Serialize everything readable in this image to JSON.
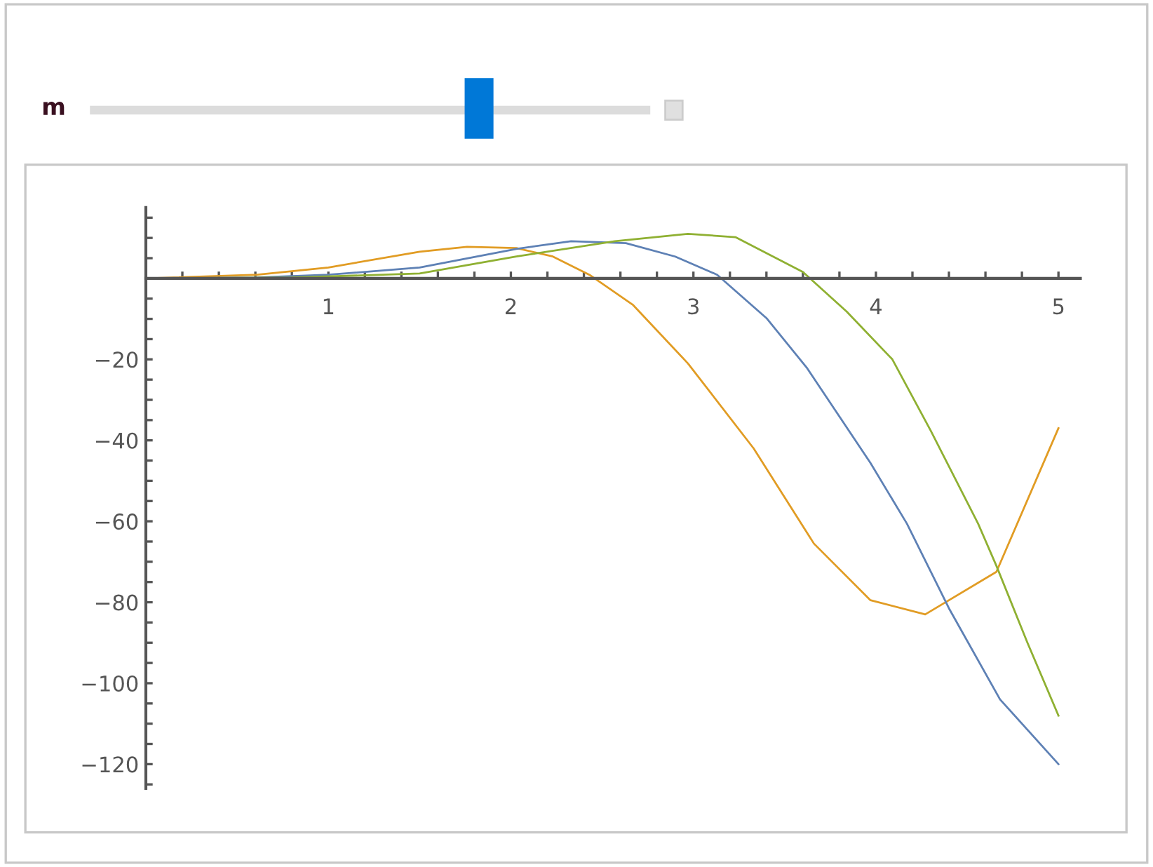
{
  "chart_data": {
    "type": "line",
    "annotations": [
      "m"
    ],
    "xlim": [
      0,
      5.12
    ],
    "ylim": [
      -126,
      17.5
    ],
    "xticks": [
      1,
      2,
      3,
      4,
      5,
      {
        "value": 0.2,
        "label": null
      },
      {
        "value": 0.4,
        "label": null
      },
      {
        "value": 0.6,
        "label": null
      },
      {
        "value": 0.8,
        "label": null
      },
      {
        "value": 1.2,
        "label": null
      },
      {
        "value": 1.4,
        "label": null
      },
      {
        "value": 1.6,
        "label": null
      },
      {
        "value": 1.8,
        "label": null
      },
      {
        "value": 2.2,
        "label": null
      },
      {
        "value": 2.4,
        "label": null
      },
      {
        "value": 2.6,
        "label": null
      },
      {
        "value": 2.8,
        "label": null
      },
      {
        "value": 3.2,
        "label": null
      },
      {
        "value": 3.4,
        "label": null
      },
      {
        "value": 3.6,
        "label": null
      },
      {
        "value": 3.8,
        "label": null
      },
      {
        "value": 4.2,
        "label": null
      },
      {
        "value": 4.4,
        "label": null
      },
      {
        "value": 4.6,
        "label": null
      },
      {
        "value": 4.8,
        "label": null
      }
    ],
    "yticks": [
      {
        "value": -120,
        "label": "−120"
      },
      {
        "value": -100,
        "label": "−100"
      },
      {
        "value": -80,
        "label": "−80"
      },
      {
        "value": -60,
        "label": "−60"
      },
      {
        "value": -40,
        "label": "−40"
      },
      {
        "value": -20,
        "label": "−20"
      },
      {
        "value": 5,
        "label": null
      },
      {
        "value": 10,
        "label": null
      },
      {
        "value": 15,
        "label": null
      },
      {
        "value": -5,
        "label": null
      },
      {
        "value": -10,
        "label": null
      },
      {
        "value": -15,
        "label": null
      },
      {
        "value": -25,
        "label": null
      },
      {
        "value": -30,
        "label": null
      },
      {
        "value": -35,
        "label": null
      },
      {
        "value": -45,
        "label": null
      },
      {
        "value": -50,
        "label": null
      },
      {
        "value": -55,
        "label": null
      },
      {
        "value": -65,
        "label": null
      },
      {
        "value": -70,
        "label": null
      },
      {
        "value": -75,
        "label": null
      },
      {
        "value": -85,
        "label": null
      },
      {
        "value": -90,
        "label": null
      },
      {
        "value": -95,
        "label": null
      },
      {
        "value": -105,
        "label": null
      },
      {
        "value": -110,
        "label": null
      },
      {
        "value": -115,
        "label": null
      },
      {
        "value": -125,
        "label": null
      }
    ],
    "grid": false,
    "legend": false,
    "marker": "none",
    "line_style": "solid",
    "series": [
      {
        "color": "#e19c24",
        "x": [
          0,
          0.61,
          1.0,
          1.5,
          1.76,
          2.03,
          2.23,
          2.43,
          2.67,
          2.97,
          3.33,
          3.66,
          3.97,
          4.27,
          4.66,
          5.0
        ],
        "values": [
          0,
          0.9,
          2.7,
          6.6,
          7.8,
          7.5,
          5.4,
          0.9,
          -6.6,
          -21,
          -42,
          -65.5,
          -79.5,
          -83,
          -72.5,
          -37
        ]
      },
      {
        "color": "#5e81b5",
        "x": [
          0,
          0.6,
          1.0,
          1.5,
          2.03,
          2.33,
          2.63,
          2.9,
          3.13,
          3.4,
          3.62,
          3.97,
          4.17,
          4.4,
          4.68,
          5.0
        ],
        "values": [
          0,
          0.2,
          0.9,
          2.7,
          7.3,
          9.2,
          8.7,
          5.4,
          0.9,
          -9.8,
          -22,
          -45.6,
          -60.6,
          -81.5,
          -104,
          -120
        ]
      },
      {
        "color": "#8fb032",
        "x": [
          0,
          0.8,
          1.5,
          2.03,
          2.57,
          2.97,
          3.23,
          3.6,
          3.84,
          4.09,
          4.3,
          4.56,
          4.66,
          4.83,
          5.0
        ],
        "values": [
          0,
          0.2,
          1.2,
          5.4,
          9.2,
          11,
          10.2,
          1.6,
          -8.2,
          -20,
          -37.6,
          -60.6,
          -71,
          -90,
          -108
        ]
      }
    ]
  }
}
